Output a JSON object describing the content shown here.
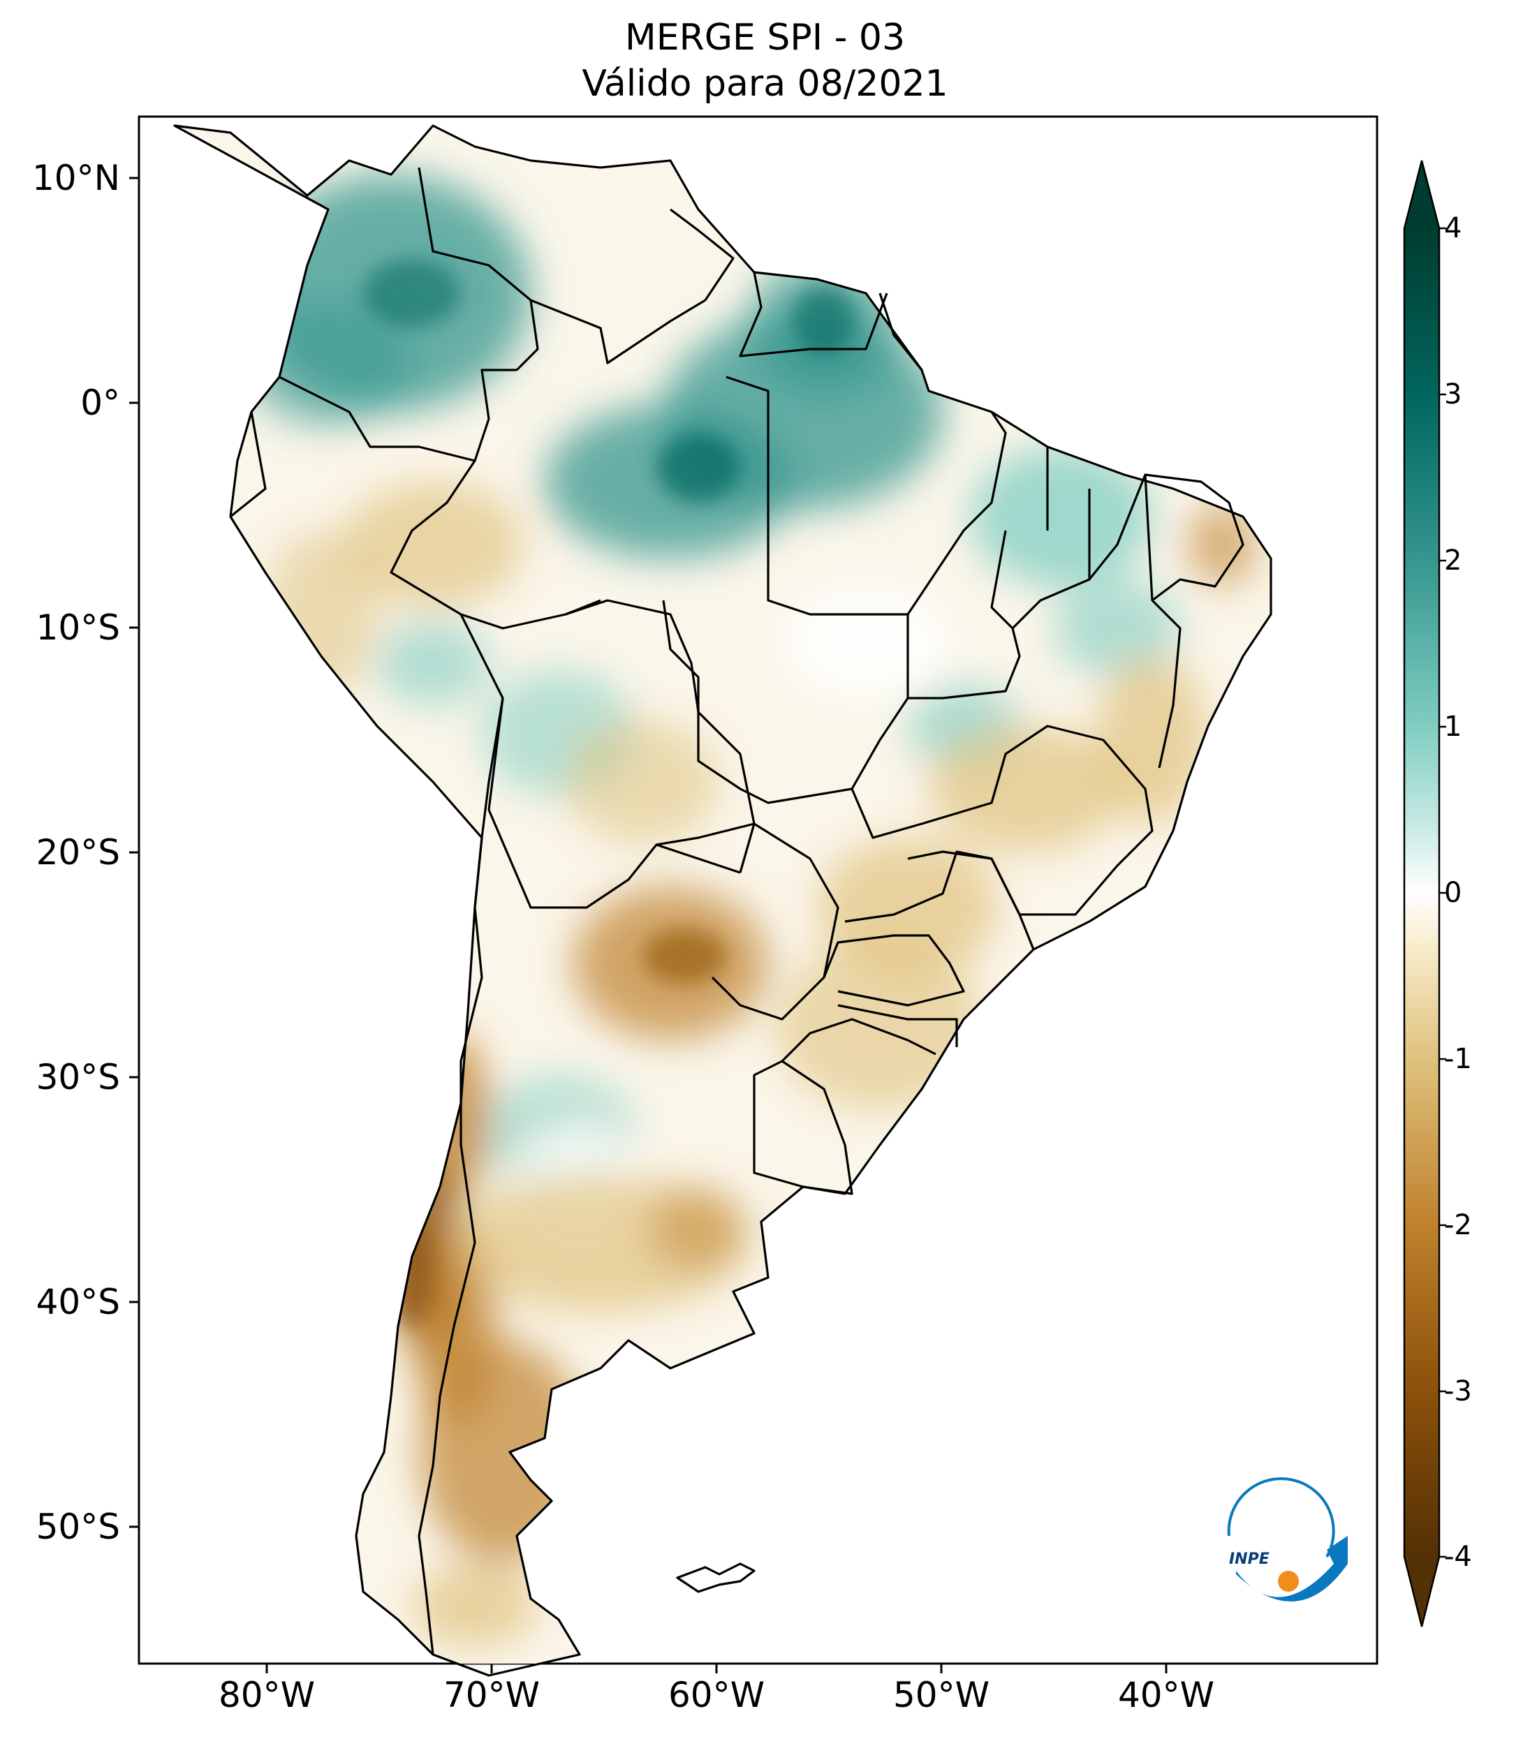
{
  "title": {
    "line1": "MERGE   SPI - 03",
    "line2": "Válido para 08/2021"
  },
  "map": {
    "region": "South America",
    "projection": "Plate Carrée",
    "lon_range": [
      -85,
      -30
    ],
    "lat_range": [
      -57,
      13
    ],
    "lat_ticks": [
      {
        "value": 10,
        "label": "10°N"
      },
      {
        "value": 0,
        "label": "0°"
      },
      {
        "value": -10,
        "label": "10°S"
      },
      {
        "value": -20,
        "label": "20°S"
      },
      {
        "value": -30,
        "label": "30°S"
      },
      {
        "value": -40,
        "label": "40°S"
      },
      {
        "value": -50,
        "label": "50°S"
      }
    ],
    "lon_ticks": [
      {
        "value": -80,
        "label": "80°W"
      },
      {
        "value": -70,
        "label": "70°W"
      },
      {
        "value": -60,
        "label": "60°W"
      },
      {
        "value": -50,
        "label": "50°W"
      },
      {
        "value": -40,
        "label": "40°W"
      }
    ],
    "field": "SPI-3 (Standardized Precipitation Index, 3-month)",
    "wet_regions": [
      "Colombia / northwest Amazon",
      "Northern Amazon / Pará",
      "Amapá / Guianas",
      "Maranhão / Piauí",
      "Central Argentina (small area)"
    ],
    "dry_regions": [
      "Central Chile / Patagonia",
      "Paraguay",
      "Southern Brazil",
      "Southeast Brazil",
      "Peru (south)"
    ]
  },
  "colorbar": {
    "min": -4,
    "max": 4,
    "extend": "both",
    "colormap": "BrBG",
    "ticks": [
      {
        "value": 4,
        "label": "4"
      },
      {
        "value": 3,
        "label": "3"
      },
      {
        "value": 2,
        "label": "2"
      },
      {
        "value": 1,
        "label": "1"
      },
      {
        "value": 0,
        "label": "0"
      },
      {
        "value": -1,
        "label": "-1"
      },
      {
        "value": -2,
        "label": "-2"
      },
      {
        "value": -3,
        "label": "-3"
      },
      {
        "value": -4,
        "label": "-4"
      }
    ],
    "colors": {
      "wet_max": "#003c30",
      "wet_high": "#01665e",
      "wet_mid": "#35978f",
      "wet_low": "#80cdc1",
      "wet_faint": "#c7eae5",
      "neutral": "#ffffff",
      "dry_faint": "#f6e8c3",
      "dry_low": "#dfc27d",
      "dry_mid": "#bf812d",
      "dry_high": "#8c510a",
      "dry_max": "#543005"
    }
  },
  "logo": {
    "text": "INPE",
    "colors": {
      "arc": "#0a78bf",
      "dot": "#f28c1b"
    }
  }
}
